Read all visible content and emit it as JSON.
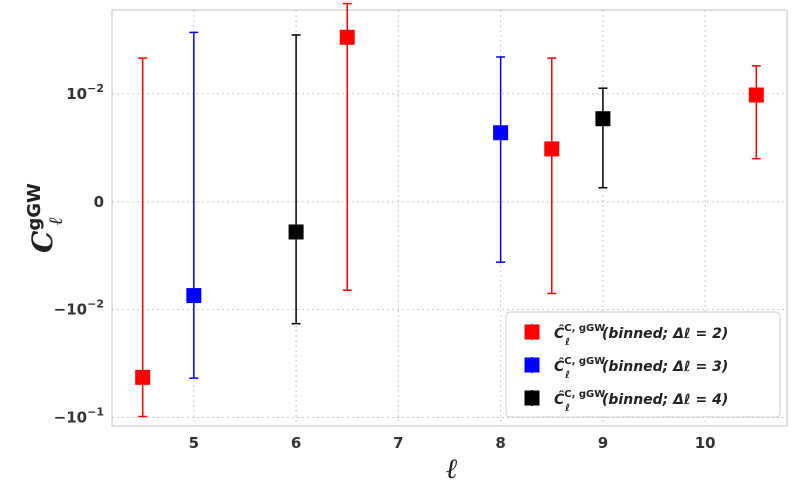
{
  "chart_data": {
    "type": "scatter",
    "title": "",
    "xlabel": "ℓ",
    "ylabel": "CℓgGW",
    "ylabel_base": "C",
    "ylabel_sub": "ℓ",
    "ylabel_sup": "gGW",
    "xlim": [
      4.2,
      10.8
    ],
    "x_ticks": [
      5,
      6,
      7,
      8,
      9,
      10
    ],
    "x_tick_labels": [
      "5",
      "6",
      "7",
      "8",
      "9",
      "10"
    ],
    "y_scale": "symlog",
    "linthresh": 0.01,
    "ylim": [
      -0.12,
      0.06
    ],
    "y_ticks": [
      -0.1,
      -0.01,
      0,
      0.01
    ],
    "y_tick_labels": [
      {
        "base": "−10",
        "exp": "−1"
      },
      {
        "base": "−10",
        "exp": "−2"
      },
      {
        "base": "0",
        "exp": ""
      },
      {
        "base": "10",
        "exp": "−2"
      }
    ],
    "grid": true,
    "legend_position": "lower-right",
    "series": [
      {
        "name": "binned; Δℓ = 2",
        "legend_label": "ĈℓC, gGW(binned; Δℓ = 2)",
        "color": "#ff0000",
        "points": [
          {
            "x": 4.5,
            "y": -0.0425,
            "lo": -0.098,
            "hi": 0.0215
          },
          {
            "x": 6.5,
            "y": 0.0335,
            "lo": -0.0082,
            "hi": 0.0688
          },
          {
            "x": 8.5,
            "y": 0.0049,
            "lo": -0.0085,
            "hi": 0.0215
          },
          {
            "x": 10.5,
            "y": 0.0099,
            "lo": 0.004,
            "hi": 0.0182
          }
        ]
      },
      {
        "name": "binned; Δℓ = 3",
        "legend_label": "ĈℓC, gGW(binned; Δℓ = 3)",
        "color": "#0000ff",
        "points": [
          {
            "x": 5.0,
            "y": -0.0087,
            "lo": -0.0432,
            "hi": 0.0372
          },
          {
            "x": 8.0,
            "y": 0.0064,
            "lo": -0.0056,
            "hi": 0.022
          }
        ]
      },
      {
        "name": "binned; Δℓ = 4",
        "legend_label": "ĈℓC, gGW(binned; Δℓ = 4)",
        "color": "#000000",
        "points": [
          {
            "x": 6.0,
            "y": -0.0028,
            "lo": -0.0135,
            "hi": 0.0352
          },
          {
            "x": 9.0,
            "y": 0.0077,
            "lo": 0.0013,
            "hi": 0.0113
          }
        ]
      }
    ]
  }
}
